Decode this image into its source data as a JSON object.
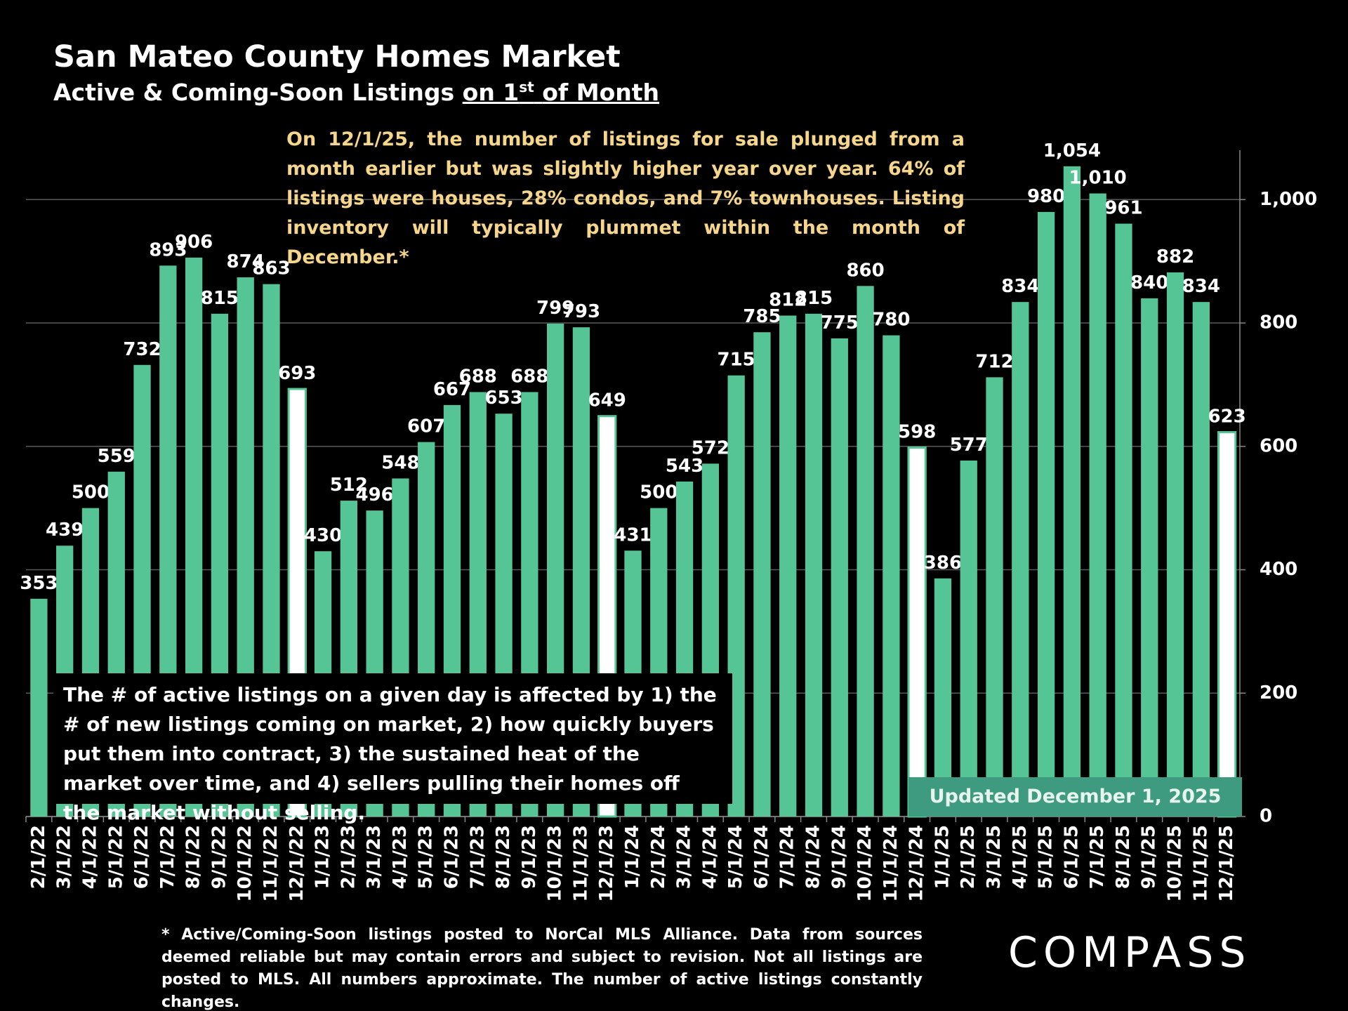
{
  "chart_data": {
    "type": "bar",
    "title": "San Mateo County Homes Market",
    "subtitle": {
      "text": "Active & Coming-Soon Listings",
      "underlined": "on 1",
      "superscript": "st",
      "underlined_end": "of Month"
    },
    "categories": [
      "2/1/22",
      "3/1/22",
      "4/1/22",
      "5/1/22",
      "6/1/22",
      "7/1/22",
      "8/1/22",
      "9/1/22",
      "10/1/22",
      "11/1/22",
      "12/1/22",
      "1/1/23",
      "2/1/23",
      "3/1/23",
      "4/1/23",
      "5/1/23",
      "6/1/23",
      "7/1/23",
      "8/1/23",
      "9/1/23",
      "10/1/23",
      "11/1/23",
      "12/1/23",
      "1/1/24",
      "2/1/24",
      "3/1/24",
      "4/1/24",
      "5/1/24",
      "6/1/24",
      "7/1/24",
      "8/1/24",
      "9/1/24",
      "10/1/24",
      "11/1/24",
      "12/1/24",
      "1/1/25",
      "2/1/25",
      "3/1/25",
      "4/1/25",
      "5/1/25",
      "6/1/25",
      "7/1/25",
      "8/1/25",
      "9/1/25",
      "10/1/25",
      "11/1/25",
      "12/1/25"
    ],
    "values": [
      353,
      439,
      500,
      559,
      732,
      893,
      906,
      815,
      874,
      863,
      693,
      430,
      512,
      496,
      548,
      607,
      667,
      688,
      653,
      688,
      799,
      793,
      649,
      431,
      500,
      543,
      572,
      715,
      785,
      812,
      815,
      775,
      860,
      780,
      598,
      386,
      577,
      712,
      834,
      980,
      1054,
      1010,
      961,
      840,
      882,
      834,
      623
    ],
    "value_labels": [
      "353",
      "439",
      "500",
      "559",
      "732",
      "893",
      "906",
      "815",
      "874",
      "863",
      "693",
      "430",
      "512",
      "496",
      "548",
      "607",
      "667",
      "688",
      "653",
      "688",
      "799",
      "793",
      "649",
      "431",
      "500",
      "543",
      "572",
      "715",
      "785",
      "812",
      "815",
      "775",
      "860",
      "780",
      "598",
      "386",
      "577",
      "712",
      "834",
      "980",
      "1,054",
      "1,010",
      "961",
      "840",
      "882",
      "834",
      "623"
    ],
    "colors": [
      "#56c596",
      "#56c596",
      "#56c596",
      "#56c596",
      "#56c596",
      "#56c596",
      "#56c596",
      "#56c596",
      "#56c596",
      "#56c596",
      "#ffffff",
      "#56c596",
      "#56c596",
      "#56c596",
      "#56c596",
      "#56c596",
      "#56c596",
      "#56c596",
      "#56c596",
      "#56c596",
      "#56c596",
      "#56c596",
      "#ffffff",
      "#56c596",
      "#56c596",
      "#56c596",
      "#56c596",
      "#56c596",
      "#56c596",
      "#56c596",
      "#56c596",
      "#56c596",
      "#56c596",
      "#56c596",
      "#ffffff",
      "#56c596",
      "#56c596",
      "#56c596",
      "#56c596",
      "#56c596",
      "#56c596",
      "#56c596",
      "#56c596",
      "#56c596",
      "#56c596",
      "#56c596",
      "#ffffff"
    ],
    "ylim": [
      0,
      1080
    ],
    "yticks": [
      0,
      200,
      400,
      600,
      800,
      {
        "value": 1000,
        "label": "1,000"
      }
    ],
    "y_axis_side": "right",
    "grid": true,
    "annotations": {
      "summary": "On 12/1/25, the number of listings for sale plunged from a month earlier but was slightly higher year over year. 64% of listings were houses, 28% condos, and 7% townhouses. Listing inventory will typically plummet within the month of December.*",
      "explainer": "The # of active listings on a given day is affected by 1) the # of new listings coming on market, 2) how quickly buyers put them into contract, 3) the sustained heat of the market over time, and 4) sellers pulling their homes off the market without selling.",
      "updated": "Updated December 1, 2025",
      "footnote": "* Active/Coming-Soon listings posted to NorCal MLS Alliance.  Data from sources deemed reliable but may contain errors and subject to revision.  Not all listings are posted to MLS. All numbers approximate. The number of active listings constantly changes.",
      "logo": "COMPASS"
    }
  }
}
